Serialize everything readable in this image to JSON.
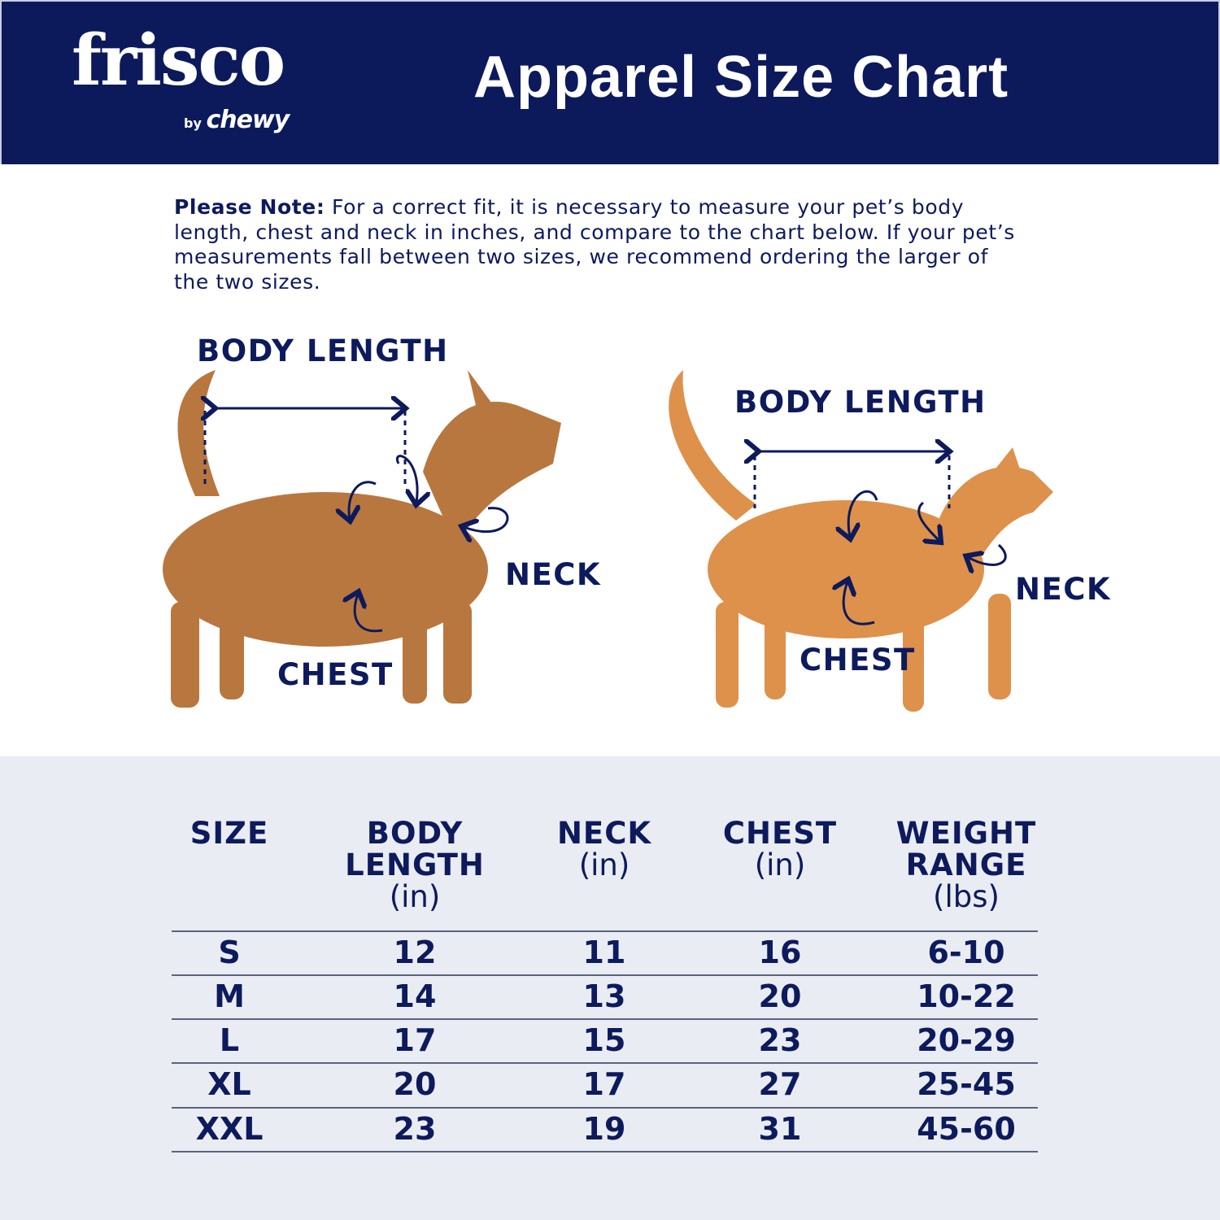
{
  "header": {
    "brand": "frisco",
    "brand_sub_by": "by",
    "brand_sub": "chewy",
    "title": "Apparel Size Chart",
    "bg_color": "#0c1a5c"
  },
  "note": {
    "label": "Please Note:",
    "text": "For a correct fit, it is necessary to measure your pet’s body length, chest and neck in inches, and compare to the chart below. If your pet’s measurements fall between two sizes, we recommend ordering the larger of the two sizes."
  },
  "dog": {
    "body_length": "BODY LENGTH",
    "neck": "NECK",
    "chest": "CHEST"
  },
  "cat": {
    "body_length": "BODY LENGTH",
    "neck": "NECK",
    "chest": "CHEST"
  },
  "table": {
    "headers": [
      {
        "title": "SIZE",
        "unit": ""
      },
      {
        "title": "BODY LENGTH",
        "unit": "(in)"
      },
      {
        "title": "NECK",
        "unit": "(in)"
      },
      {
        "title": "CHEST",
        "unit": "(in)"
      },
      {
        "title": "WEIGHT RANGE",
        "unit": "(lbs)"
      }
    ],
    "rows": [
      [
        "S",
        "12",
        "11",
        "16",
        "6-10"
      ],
      [
        "M",
        "14",
        "13",
        "20",
        "10-22"
      ],
      [
        "L",
        "17",
        "15",
        "23",
        "20-29"
      ],
      [
        "XL",
        "20",
        "17",
        "27",
        "25-45"
      ],
      [
        "XXL",
        "23",
        "19",
        "31",
        "45-60"
      ]
    ]
  }
}
